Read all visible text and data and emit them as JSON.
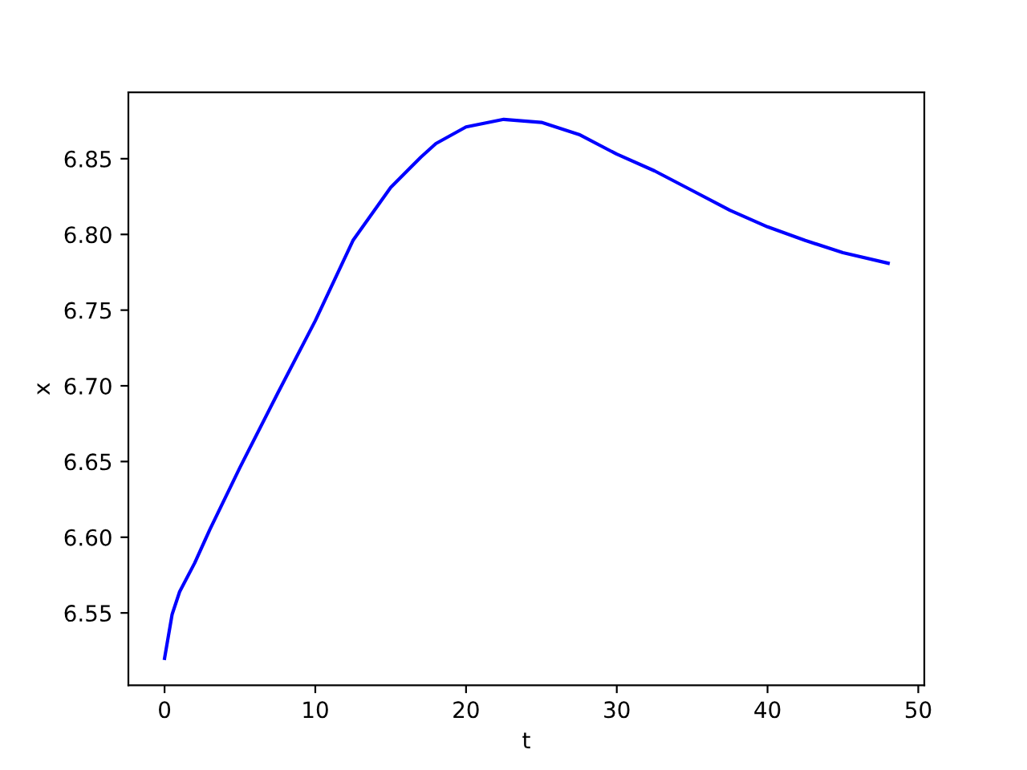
{
  "chart_data": {
    "type": "line",
    "xlabel": "t",
    "ylabel": "x",
    "series": [
      {
        "color": "#0000ff",
        "x": [
          0,
          0.5,
          1,
          2,
          3,
          5,
          7.5,
          10,
          12.5,
          15,
          17,
          18,
          20,
          22.5,
          25,
          27.5,
          30,
          32.5,
          35,
          37.5,
          40,
          42.5,
          45,
          48
        ],
        "values": [
          6.52,
          6.549,
          6.564,
          6.583,
          6.605,
          6.646,
          6.695,
          6.743,
          6.796,
          6.831,
          6.851,
          6.86,
          6.871,
          6.876,
          6.874,
          6.866,
          6.853,
          6.842,
          6.829,
          6.816,
          6.805,
          6.796,
          6.788,
          6.781
        ]
      }
    ],
    "xlim": [
      -2.4,
      50.4
    ],
    "ylim": [
      6.5022,
      6.8938
    ],
    "xticks": [
      0,
      10,
      20,
      30,
      40,
      50
    ],
    "yticks": [
      {
        "value": 6.55,
        "label": "6.55"
      },
      {
        "value": 6.6,
        "label": "6.60"
      },
      {
        "value": 6.65,
        "label": "6.65"
      },
      {
        "value": 6.7,
        "label": "6.70"
      },
      {
        "value": 6.75,
        "label": "6.75"
      },
      {
        "value": 6.8,
        "label": "6.80"
      },
      {
        "value": 6.85,
        "label": "6.85"
      }
    ],
    "grid": false,
    "legend": false,
    "marker": "none",
    "line_style": "solid"
  }
}
